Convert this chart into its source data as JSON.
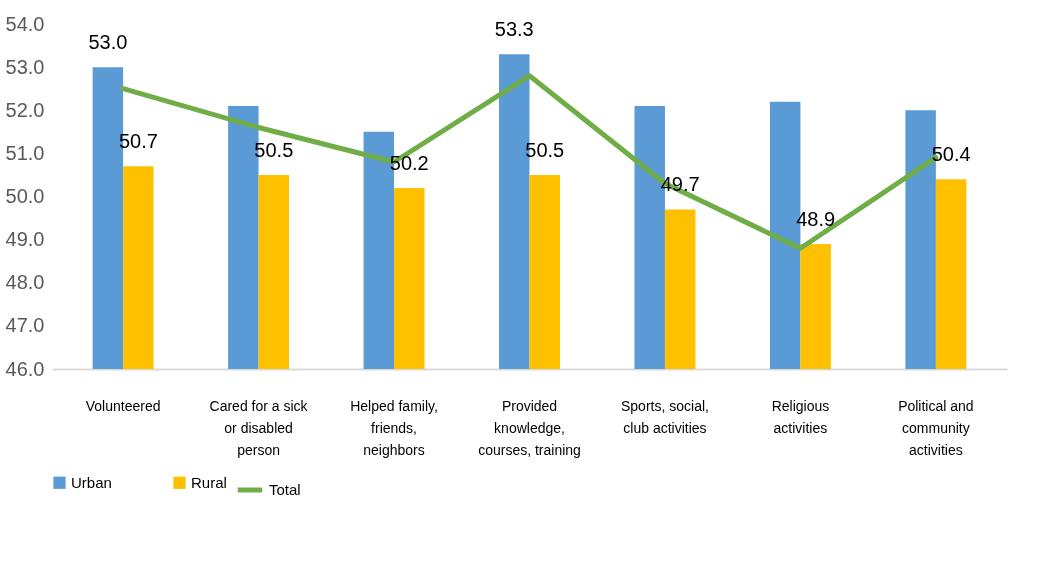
{
  "chart_data": {
    "type": "bar",
    "categories": [
      "Volunteered",
      "Cared for a sick or disabled person",
      "Helped family, friends, neighbors",
      "Provided knowledge, courses, training",
      "Sports, social, club activities",
      "Religious activities",
      "Political and community activities"
    ],
    "series": [
      {
        "name": "Urban",
        "color": "#5b9bd5",
        "values": [
          53.0,
          52.1,
          51.5,
          53.3,
          52.1,
          52.2,
          52.0
        ],
        "value_labels": [
          "53.0",
          null,
          null,
          "53.3",
          null,
          null,
          null
        ]
      },
      {
        "name": "Rural",
        "color": "#ffc000",
        "values": [
          50.7,
          50.5,
          50.2,
          50.5,
          49.7,
          48.9,
          50.4
        ],
        "value_labels": [
          "50.7",
          "50.5",
          "50.2",
          "50.5",
          "49.7",
          "48.9",
          "50.4"
        ]
      },
      {
        "name": "Total",
        "type": "line",
        "color": "#70ad47",
        "values": [
          52.5,
          51.6,
          50.8,
          52.8,
          50.3,
          48.8,
          50.9
        ]
      }
    ],
    "ylim": [
      46,
      54
    ],
    "yticks": [
      {
        "value": 46,
        "label": "46.0"
      },
      {
        "value": 47,
        "label": "47.0"
      },
      {
        "value": 48,
        "label": "48.0"
      },
      {
        "value": 49,
        "label": "49.0"
      },
      {
        "value": 50,
        "label": "50.0"
      },
      {
        "value": 51,
        "label": "51.0"
      },
      {
        "value": 52,
        "label": "52.0"
      },
      {
        "value": 53,
        "label": "53.0"
      },
      {
        "value": 54,
        "label": "54.0"
      }
    ],
    "legend": "bottom"
  }
}
